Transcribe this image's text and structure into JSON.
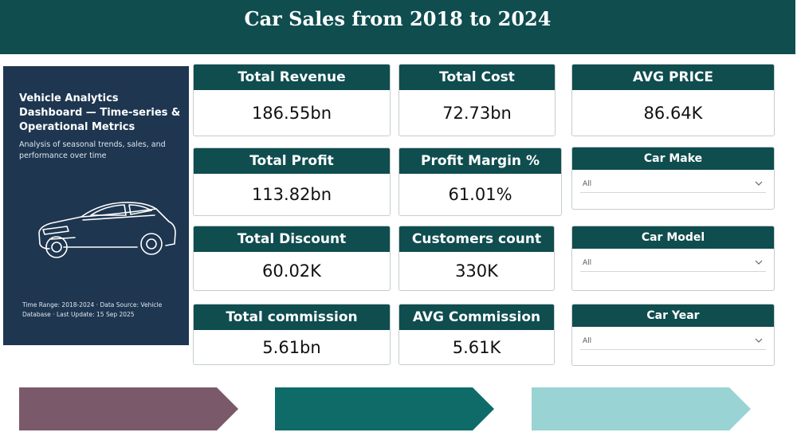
{
  "header": {
    "title": "Car Sales from 2018 to 2024"
  },
  "panel": {
    "title": "Vehicle Analytics Dashboard — Time-series & Operational Metrics",
    "subtitle": "Analysis of seasonal trends, sales, and performance over time",
    "meta": "Time Range: 2018-2024 · Data Source: Vehicle Database · Last Update: 15 Sep 2025"
  },
  "kpis": [
    {
      "label": "Total Revenue",
      "value": "186.55bn"
    },
    {
      "label": "Total Cost",
      "value": "72.73bn"
    },
    {
      "label": "AVG PRICE",
      "value": "86.64K"
    },
    {
      "label": "Total Profit",
      "value": "113.82bn"
    },
    {
      "label": "Profit Margin %",
      "value": "61.01%"
    },
    {
      "label": "Total Discount",
      "value": "60.02K"
    },
    {
      "label": "Customers count",
      "value": "330K"
    },
    {
      "label": "Total commission",
      "value": "5.61bn"
    },
    {
      "label": "AVG Commission",
      "value": "5.61K"
    }
  ],
  "slicers": [
    {
      "label": "Car Make",
      "value": "All"
    },
    {
      "label": "Car Model",
      "value": "All"
    },
    {
      "label": "Car Year",
      "value": "All"
    }
  ],
  "colors": {
    "header": "#0f4d4f",
    "panel": "#1e3650",
    "chevron_1": "#7a5a6a",
    "chevron_2": "#0e6b68",
    "chevron_3": "#9ad3d3"
  }
}
